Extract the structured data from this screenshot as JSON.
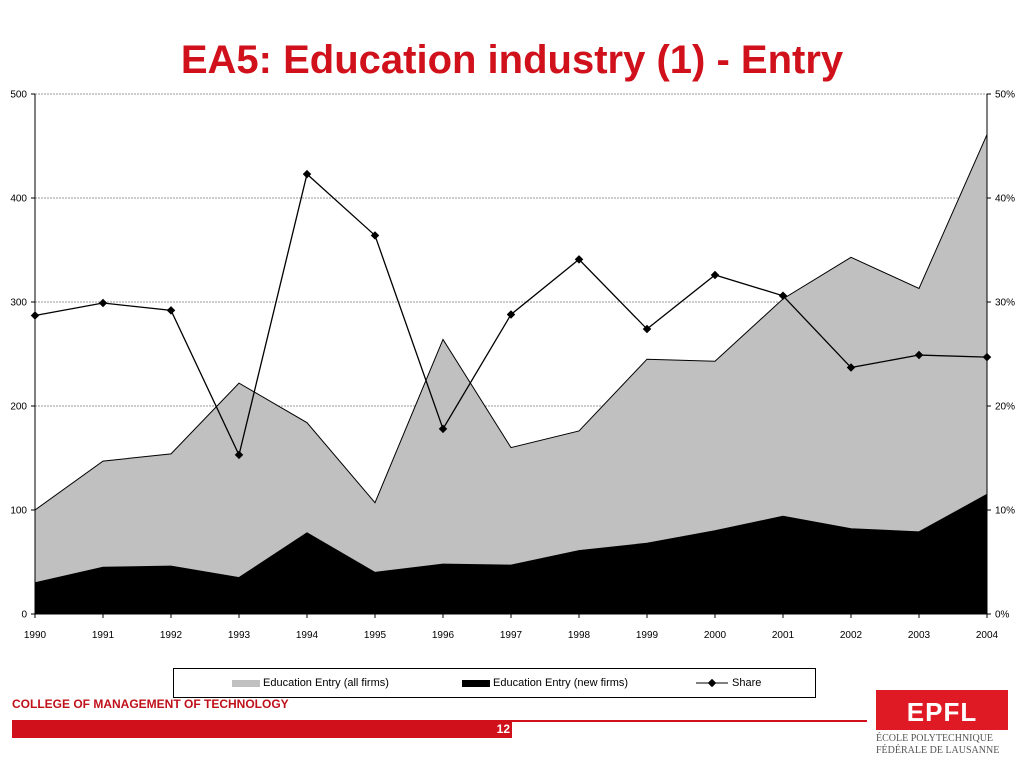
{
  "slide": {
    "title": "EA5: Education industry (1) - Entry",
    "footer_college": "COLLEGE OF MANAGEMENT OF TECHNOLOGY",
    "page_number": "12"
  },
  "logo": {
    "mark": "EPFL",
    "line1": "ÉCOLE POLYTECHNIQUE",
    "line2": "FÉDÉRALE DE LAUSANNE"
  },
  "colors": {
    "title": "#d0101a",
    "all_firms_fill": "#c0c0c0",
    "new_firms_fill": "#000000",
    "share_line": "#000000"
  },
  "legend": {
    "all_firms": "Education Entry (all firms)",
    "new_firms": "Education Entry (new firms)",
    "share": "Share"
  },
  "chart_data": {
    "type": "area",
    "x": [
      "1990",
      "1991",
      "1992",
      "1993",
      "1994",
      "1995",
      "1996",
      "1997",
      "1998",
      "1999",
      "2000",
      "2001",
      "2002",
      "2003",
      "2004"
    ],
    "series": [
      {
        "name": "Education Entry (all firms)",
        "type": "area",
        "axis": "left",
        "values": [
          100,
          147,
          154,
          222,
          184,
          107,
          264,
          160,
          176,
          245,
          243,
          303,
          343,
          313,
          461
        ]
      },
      {
        "name": "Education Entry (new firms)",
        "type": "area",
        "axis": "left",
        "values": [
          30,
          45,
          46,
          35,
          78,
          40,
          48,
          47,
          61,
          68,
          80,
          94,
          82,
          79,
          115
        ]
      },
      {
        "name": "Share",
        "type": "line",
        "axis": "right",
        "values": [
          28.7,
          29.9,
          29.2,
          15.3,
          42.3,
          36.4,
          17.8,
          28.8,
          34.1,
          27.4,
          32.6,
          30.6,
          23.7,
          24.9,
          24.7
        ]
      }
    ],
    "y_left": {
      "min": 0,
      "max": 500,
      "ticks": [
        0,
        100,
        200,
        300,
        400,
        500
      ]
    },
    "y_right": {
      "min": 0,
      "max": 50,
      "ticks": [
        "0%",
        "10%",
        "20%",
        "30%",
        "40%",
        "50%"
      ]
    },
    "grid": true,
    "legend_position": "bottom"
  }
}
